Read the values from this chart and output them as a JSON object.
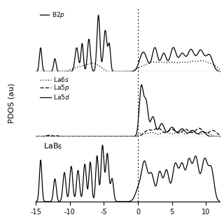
{
  "xlim": [
    -15,
    12
  ],
  "x_ticks": [
    -15,
    -10,
    -5,
    0,
    5,
    10
  ],
  "x_tick_labels": [
    "-15",
    "-10",
    "-5",
    "0",
    "5",
    "10"
  ],
  "ylabel": "PDOS (au)",
  "background": "#ffffff",
  "panel1_label": "B2p",
  "panel2_labels": [
    "La6s",
    "La5p",
    "La5d"
  ],
  "panel3_label": "LaB6",
  "b2p_peaks": [
    -14.3,
    -12.2,
    -9.0,
    -8.2,
    -7.2,
    -5.8,
    -4.8,
    -4.2,
    0.8,
    2.5,
    3.8,
    5.2,
    6.5,
    7.8,
    9.2,
    10.5
  ],
  "b2p_widths": [
    0.18,
    0.18,
    0.25,
    0.18,
    0.22,
    0.22,
    0.25,
    0.18,
    0.55,
    0.4,
    0.4,
    0.45,
    0.45,
    0.5,
    0.5,
    0.5
  ],
  "b2p_heights": [
    0.55,
    0.3,
    0.55,
    0.65,
    0.75,
    1.3,
    0.95,
    0.6,
    0.45,
    0.55,
    0.42,
    0.55,
    0.4,
    0.5,
    0.48,
    0.38
  ],
  "dot1_peaks": [
    -9.5,
    -8.5,
    -7.5,
    -6.5,
    -5.5,
    0.5,
    2.0,
    3.5,
    5.0,
    6.5,
    8.0,
    9.5,
    11.0
  ],
  "dot1_widths": [
    0.6,
    0.5,
    0.5,
    0.5,
    0.5,
    0.7,
    0.7,
    0.7,
    0.7,
    0.7,
    0.7,
    0.7,
    0.7
  ],
  "dot1_heights": [
    0.06,
    0.09,
    0.13,
    0.17,
    0.09,
    0.1,
    0.2,
    0.18,
    0.18,
    0.18,
    0.2,
    0.22,
    0.15
  ],
  "la5d_peaks": [
    0.5,
    1.2,
    2.2,
    3.5,
    5.0,
    6.5,
    8.0,
    9.5
  ],
  "la5d_widths": [
    0.3,
    0.3,
    0.35,
    0.4,
    0.45,
    0.45,
    0.45,
    0.45
  ],
  "la5d_heights": [
    0.95,
    0.65,
    0.38,
    0.25,
    0.18,
    0.15,
    0.12,
    0.1
  ],
  "la5p_peaks": [
    -13.0,
    -12.0,
    1.5,
    3.0,
    5.0,
    7.0,
    9.0,
    11.0
  ],
  "la5p_widths": [
    0.3,
    0.3,
    0.6,
    0.6,
    0.6,
    0.6,
    0.6,
    0.6
  ],
  "la5p_heights": [
    0.03,
    0.02,
    0.12,
    0.16,
    0.14,
    0.14,
    0.16,
    0.12
  ],
  "la6s_peaks": [
    -13.5,
    -12.5,
    0.5,
    2.0,
    4.0,
    6.0,
    8.0,
    10.0
  ],
  "la6s_widths": [
    0.25,
    0.25,
    0.5,
    0.6,
    0.6,
    0.6,
    0.6,
    0.6
  ],
  "la6s_heights": [
    0.025,
    0.015,
    0.06,
    0.08,
    0.1,
    0.1,
    0.1,
    0.08
  ],
  "lab6_peaks": [
    -14.3,
    -12.2,
    -10.8,
    -9.8,
    -8.8,
    -7.8,
    -7.0,
    -6.0,
    -5.2,
    -4.5,
    -3.8,
    0.2,
    1.0,
    2.0,
    3.2,
    4.2,
    5.5,
    6.5,
    7.5,
    8.5,
    9.8,
    10.8
  ],
  "lab6_widths": [
    0.18,
    0.2,
    0.22,
    0.22,
    0.22,
    0.22,
    0.2,
    0.2,
    0.22,
    0.22,
    0.22,
    0.5,
    0.4,
    0.4,
    0.35,
    0.38,
    0.42,
    0.38,
    0.38,
    0.42,
    0.45,
    0.4
  ],
  "lab6_heights": [
    1.0,
    0.55,
    0.7,
    0.85,
    0.75,
    0.9,
    0.95,
    1.1,
    1.35,
    1.15,
    0.55,
    0.35,
    0.85,
    0.65,
    0.7,
    0.75,
    0.9,
    0.85,
    0.95,
    1.05,
    1.0,
    0.75
  ]
}
